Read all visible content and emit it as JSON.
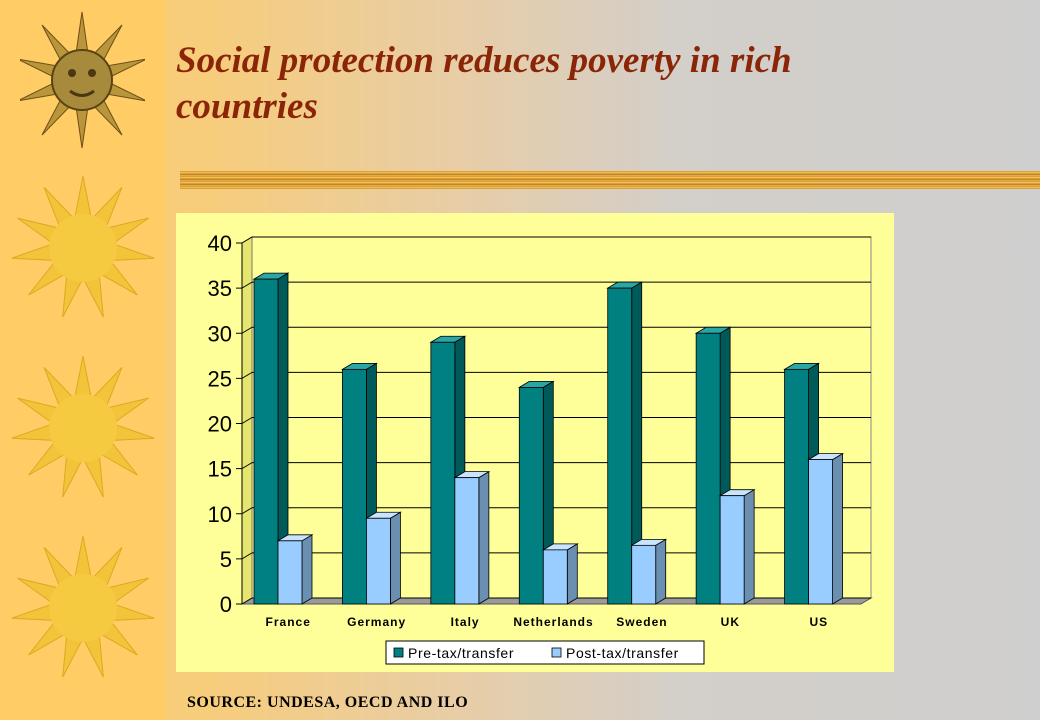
{
  "slide": {
    "title": "Social protection reduces poverty in rich countries",
    "source": "SOURCE: UNDESA, OECD AND ILO"
  },
  "colors": {
    "title": "#8b2508",
    "pre": "#008080",
    "post": "#99ccff",
    "plot_bg": "#ffff99",
    "strip": "#ffcc66"
  },
  "decor": {
    "sun_icons": [
      "sun-face-icon",
      "sun-icon",
      "sun-icon",
      "sun-icon"
    ]
  },
  "chart_data": {
    "type": "bar",
    "title": "",
    "xlabel": "",
    "ylabel": "",
    "ylim": [
      0,
      40
    ],
    "yticks": [
      0,
      5,
      10,
      15,
      20,
      25,
      30,
      35,
      40
    ],
    "categories": [
      "France",
      "Germany",
      "Italy",
      "Netherlands",
      "Sweden",
      "UK",
      "US"
    ],
    "series": [
      {
        "name": "Pre-tax/transfer",
        "values": [
          36,
          26,
          29,
          24,
          35,
          30,
          26
        ]
      },
      {
        "name": "Post-tax/transfer",
        "values": [
          7,
          9.5,
          14,
          6,
          6.5,
          12,
          16
        ]
      }
    ],
    "grid": true,
    "legend_position": "bottom",
    "style": "3d-clustered-column"
  }
}
